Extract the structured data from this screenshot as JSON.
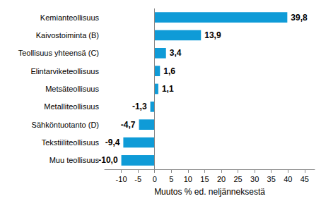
{
  "chart_data": {
    "type": "bar",
    "orientation": "horizontal",
    "categories": [
      "Kemianteollisuus",
      "Kaivostoiminta (B)",
      "Teollisuus yhteensä (C)",
      "Elintarviketeollisuus",
      "Metsäteollisuus",
      "Metalliteollisuus",
      "Sähköntuotanto (D)",
      "Tekstiiliteollisuus",
      "Muu teollisuus"
    ],
    "values": [
      39.8,
      13.9,
      3.4,
      1.6,
      1.1,
      -1.3,
      -4.7,
      -9.4,
      -10.0
    ],
    "value_labels": [
      "39,8",
      "13,9",
      "3,4",
      "1,6",
      "1,1",
      "-1,3",
      "-4,7",
      "-9,4",
      "-10,0"
    ],
    "data_labels": true,
    "color": "#0f9bd7",
    "xlabel": "Muutos % ed. neljänneksestä",
    "xlim": [
      -15,
      48
    ],
    "xticks": [
      -10,
      -5,
      0,
      5,
      10,
      15,
      20,
      25,
      30,
      35,
      40,
      45
    ],
    "grid": false
  }
}
